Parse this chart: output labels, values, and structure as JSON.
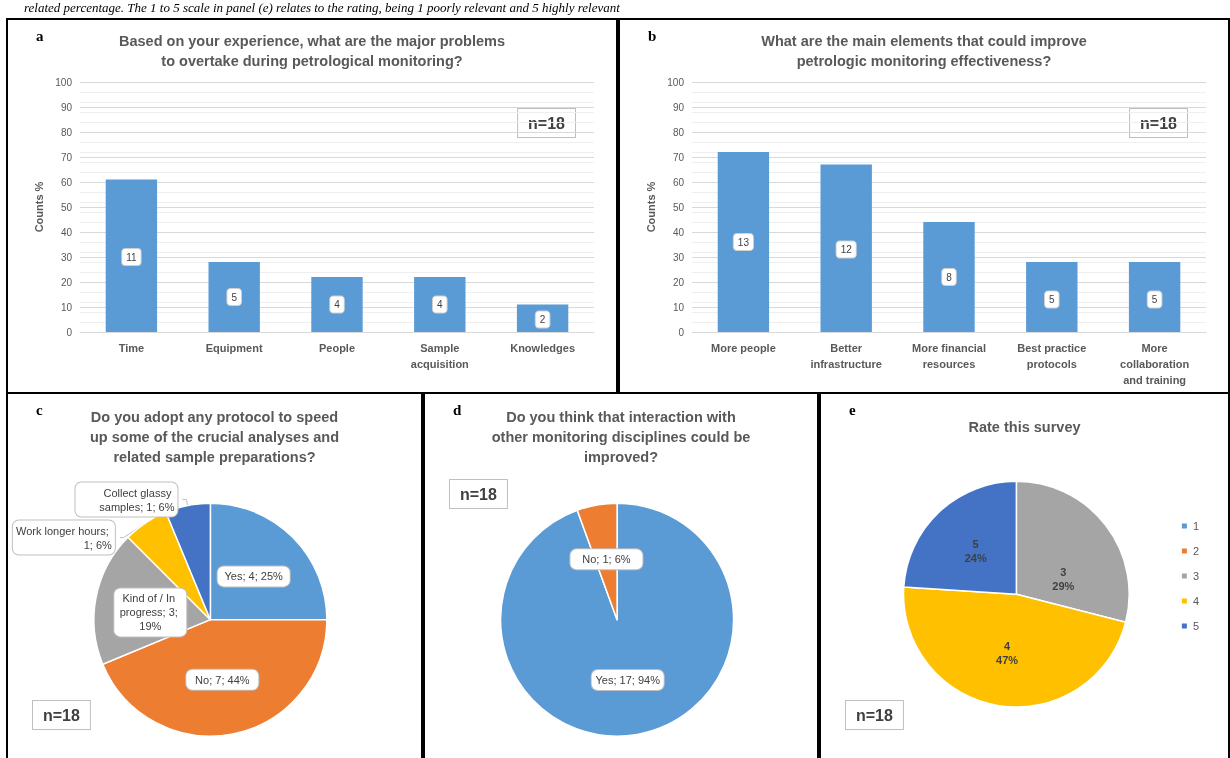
{
  "chart_data": [
    {
      "type": "bar",
      "title": "Based on your experience, what are the major problems\nto overtake during petrological monitoring?",
      "ylabel": "Counts %",
      "categories": [
        "Time",
        "Equipment",
        "People",
        "Sample\nacquisition",
        "Knowledges"
      ],
      "values": [
        61,
        28,
        22,
        22,
        11
      ],
      "color": "#5b9bd5",
      "ylim": [
        0,
        100
      ],
      "yticks": [
        0,
        10,
        20,
        30,
        40,
        50,
        60,
        70,
        80,
        90,
        100
      ],
      "grid": "y",
      "annotations": [
        "a",
        "n=18",
        "related percentage. The 1 to 5 scale in panel (e) relates to the rating, being 1 poorly relevant and 5 highly relevant",
        {
          "text": "11",
          "x": "Time",
          "y": 30
        },
        {
          "text": "5",
          "x": "Equipment",
          "y": 14
        },
        {
          "text": "4",
          "x": "People",
          "y": 11
        },
        {
          "text": "4",
          "x": "Sample\nacquisition",
          "y": 11
        },
        {
          "text": "2",
          "x": "Knowledges",
          "y": 5
        }
      ]
    },
    {
      "type": "bar",
      "title": "What are the main elements that could improve\npetrologic monitoring effectiveness?",
      "ylabel": "Counts %",
      "categories": [
        "More people",
        "Better\ninfrastructure",
        "More financial\nresources",
        "Best practice\nprotocols",
        "More\ncollaboration\nand training"
      ],
      "values": [
        72,
        67,
        44,
        28,
        28
      ],
      "color": "#5b9bd5",
      "ylim": [
        0,
        100
      ],
      "yticks": [
        0,
        10,
        20,
        30,
        40,
        50,
        60,
        70,
        80,
        90,
        100
      ],
      "grid": "y",
      "annotations": [
        "b",
        "n=18",
        {
          "text": "13",
          "x": "More people",
          "y": 36
        },
        {
          "text": "12",
          "x": "Better\ninfrastructure",
          "y": 33
        },
        {
          "text": "8",
          "x": "More financial\nresources",
          "y": 22
        },
        {
          "text": "5",
          "x": "Best practice\nprotocols",
          "y": 13
        },
        {
          "text": "5",
          "x": "More\ncollaboration\nand training",
          "y": 13
        }
      ]
    },
    {
      "type": "pie",
      "title": "Do you adopt any protocol to speed\nup some of the crucial analyses and\nrelated sample preparations?",
      "categories": [
        "Yes; 4; 25%",
        "No; 7; 44%",
        "Kind of / In progress; 3; 19%",
        "Work longer hours; 1; 6%",
        "Collect glassy samples; 1; 6%"
      ],
      "values": [
        4,
        7,
        3,
        1,
        1
      ],
      "colors": [
        "#5b9bd5",
        "#ed7d31",
        "#a5a5a5",
        "#ffc000",
        "#4472c4"
      ],
      "annotations": [
        "c",
        "n=18"
      ]
    },
    {
      "type": "pie",
      "title": "Do you think that interaction with\nother monitoring disciplines could be\nimproved?",
      "categories": [
        "Yes; 17; 94%",
        "No; 1; 6%"
      ],
      "values": [
        17,
        1
      ],
      "colors": [
        "#5b9bd5",
        "#ed7d31"
      ],
      "annotations": [
        "d",
        "n=18"
      ]
    },
    {
      "type": "pie",
      "title": "Rate this survey",
      "categories": [
        "1",
        "2",
        "3",
        "4",
        "5"
      ],
      "values": [
        0,
        0,
        29,
        47,
        24
      ],
      "value_labels": [
        null,
        null,
        "29%",
        "47%",
        "24%"
      ],
      "colors": [
        "#5b9bd5",
        "#ed7d31",
        "#a5a5a5",
        "#ffc000",
        "#4472c4"
      ],
      "legend": "right",
      "annotations": [
        "e",
        "n=18"
      ]
    }
  ]
}
